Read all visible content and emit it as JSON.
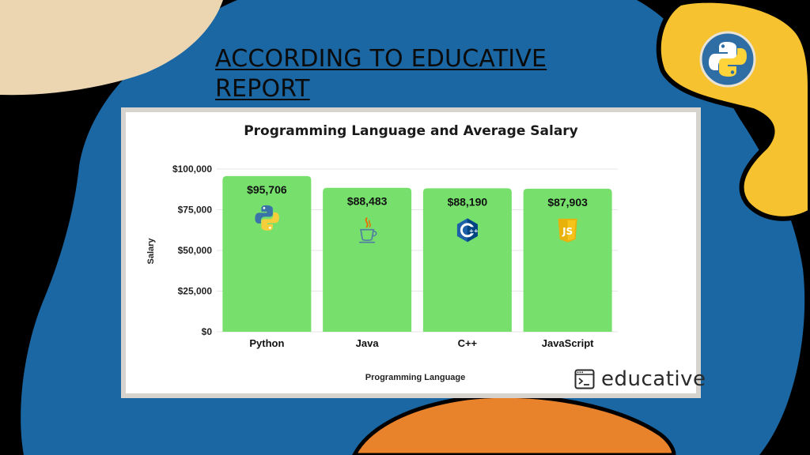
{
  "slide": {
    "title": "ACCORDING TO EDUCATIVE REPORT",
    "colors": {
      "background": "#000000",
      "blue_blob": "#1a67a3",
      "cream_blob": "#ecd6b1",
      "yellow_blob": "#f7c22f",
      "orange_blob": "#e8822b"
    },
    "badge_icon": "python-logo-icon"
  },
  "chart_data": {
    "type": "bar",
    "title": "Programming Language and Average Salary",
    "xlabel": "Programming Language",
    "ylabel": "Salary",
    "categories": [
      "Python",
      "Java",
      "C++",
      "JavaScript"
    ],
    "values": [
      95706,
      88483,
      88190,
      87903
    ],
    "data_labels": [
      "$95,706",
      "$88,483",
      "$88,190",
      "$87,903"
    ],
    "category_icons": [
      "python-logo-icon",
      "java-logo-icon",
      "cpp-logo-icon",
      "javascript-logo-icon"
    ],
    "ylim": [
      0,
      100000
    ],
    "yticks": [
      0,
      25000,
      50000,
      75000,
      100000
    ],
    "ytick_labels": [
      "$0",
      "$25,000",
      "$50,000",
      "$75,000",
      "$100,000"
    ],
    "bar_color": "#77e06d",
    "grid": true,
    "legend": "none"
  },
  "branding": {
    "logo_text": "educative",
    "logo_icon": "terminal-icon"
  }
}
